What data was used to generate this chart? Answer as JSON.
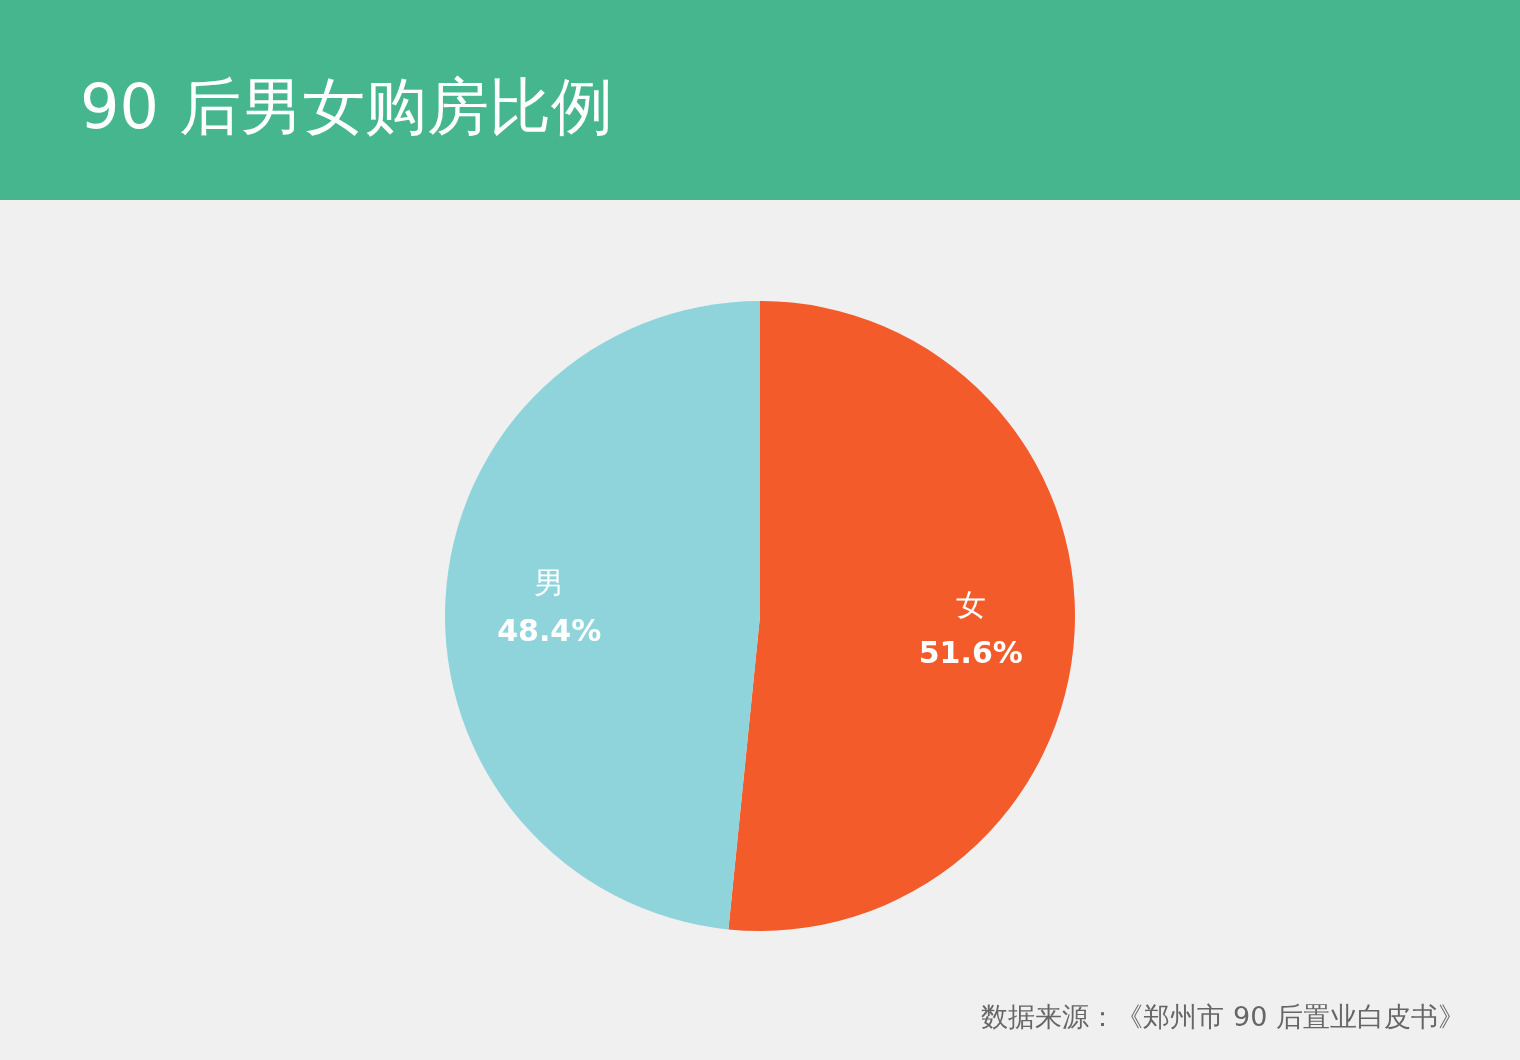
{
  "chart_data": {
    "type": "pie",
    "title": "90 后男女购房比例",
    "categories": [
      "女",
      "男"
    ],
    "values": [
      51.6,
      48.4
    ],
    "colors": [
      "#f35b2a",
      "#8fd4db"
    ],
    "value_labels": [
      "51.6%",
      "48.4%"
    ],
    "annotations": [
      "数据来源：《郑州市 90 后置业白皮书》"
    ]
  }
}
